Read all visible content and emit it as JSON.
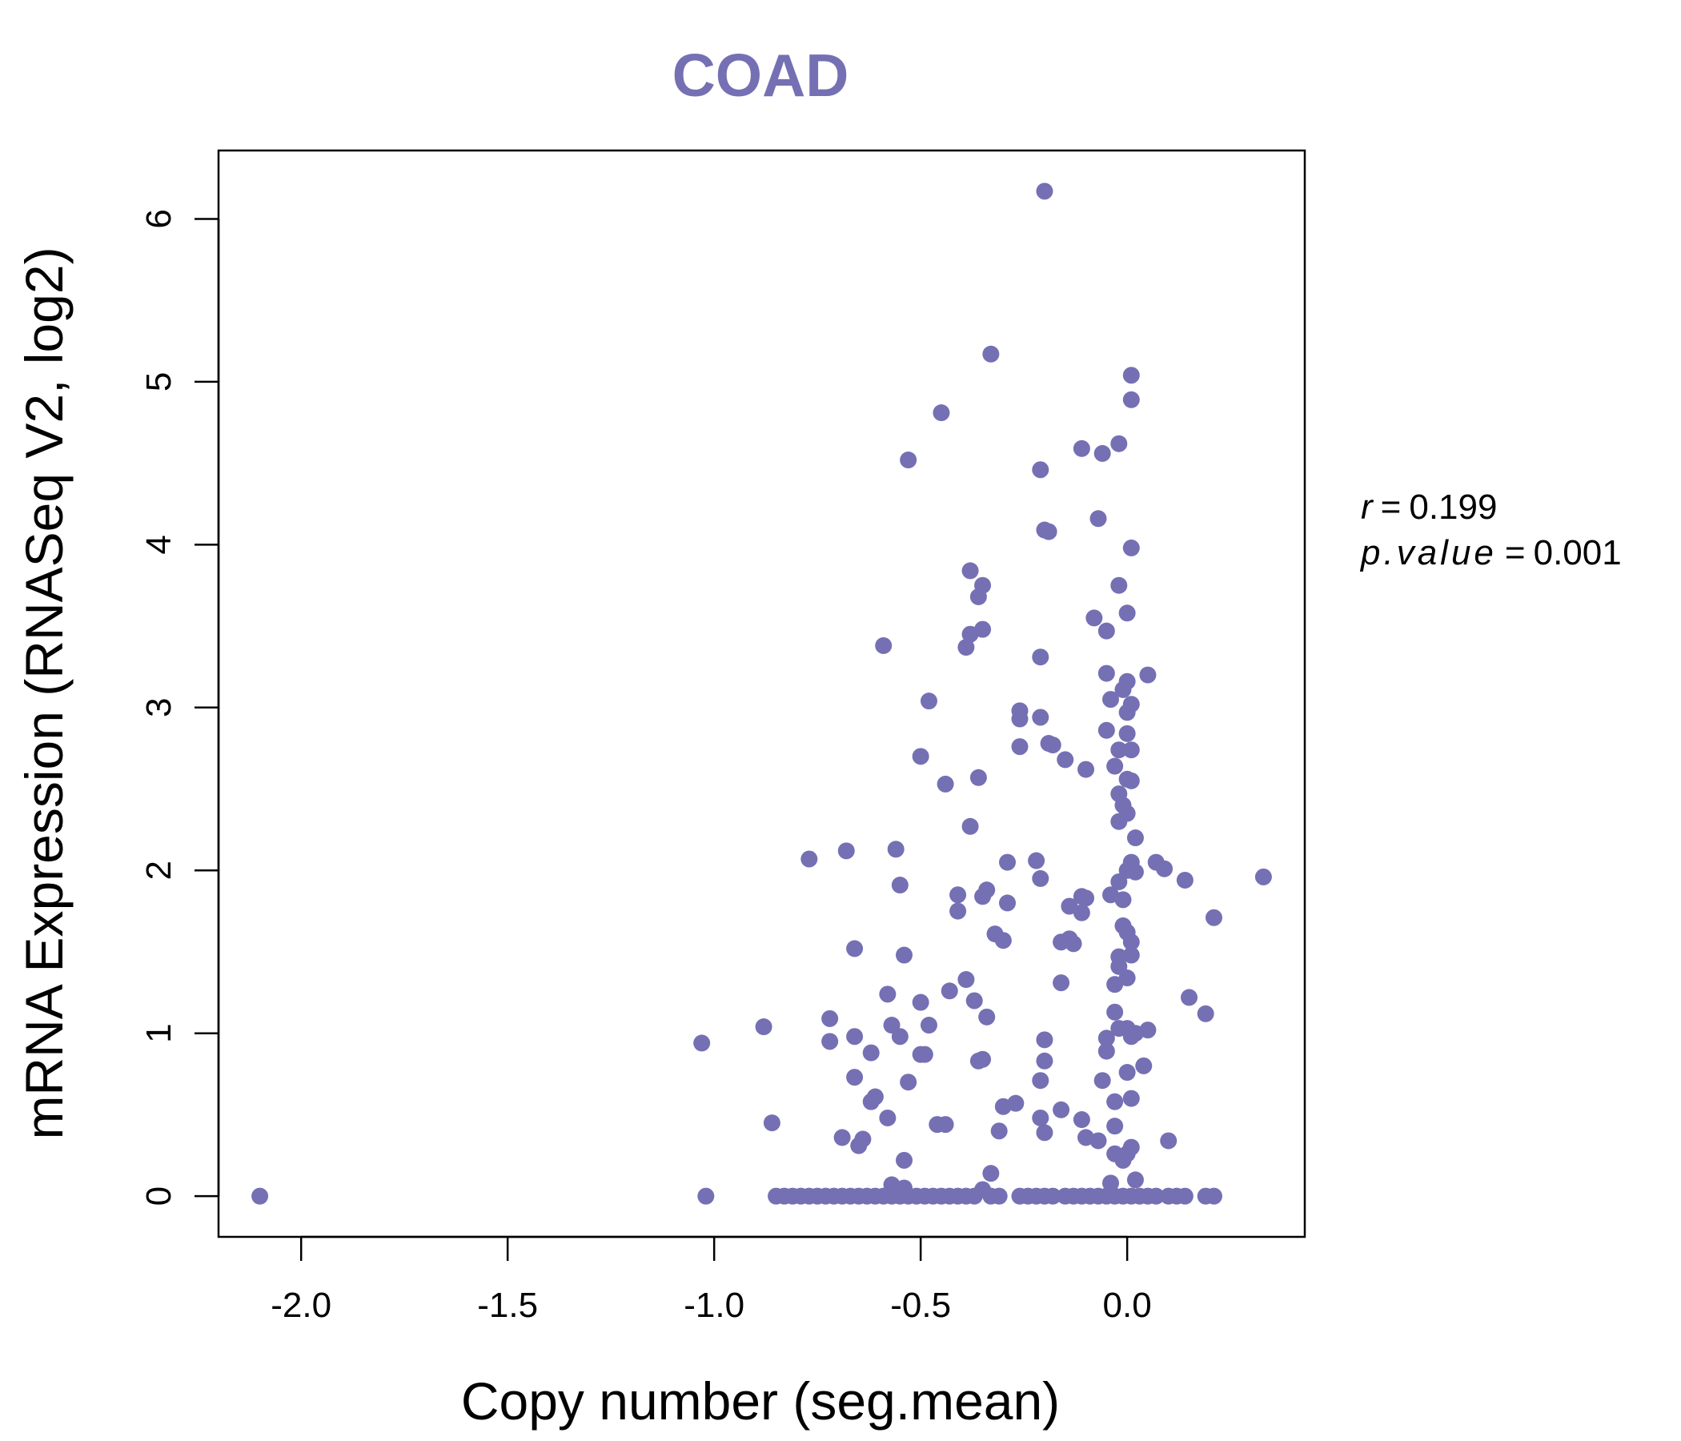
{
  "chart_data": {
    "type": "scatter",
    "title": "COAD",
    "xlabel": "Copy number (seg.mean)",
    "ylabel": "mRNA Expression (RNASeq V2, log2)",
    "xlim": [
      -2.2,
      0.43
    ],
    "ylim": [
      -0.25,
      6.42
    ],
    "xticks": [
      -2.0,
      -1.5,
      -1.0,
      -0.5,
      0.0
    ],
    "xtick_labels": [
      "-2.0",
      "-1.5",
      "-1.0",
      "-0.5",
      "0.0"
    ],
    "yticks": [
      0,
      1,
      2,
      3,
      4,
      5,
      6
    ],
    "ytick_labels": [
      "0",
      "1",
      "2",
      "3",
      "4",
      "5",
      "6"
    ],
    "point_color": "#7570b3",
    "annotation": {
      "r_label": "r",
      "r_value": "0.199",
      "p_label": "p.value",
      "p_value": "0.001",
      "equals": "="
    },
    "points": [
      [
        -2.1,
        0
      ],
      [
        -1.02,
        0
      ],
      [
        -1.03,
        0.94
      ],
      [
        -0.88,
        1.04
      ],
      [
        -0.86,
        0.45
      ],
      [
        -0.77,
        2.07
      ],
      [
        -0.68,
        2.12
      ],
      [
        -0.66,
        1.52
      ],
      [
        -0.72,
        1.09
      ],
      [
        -0.72,
        0.95
      ],
      [
        -0.66,
        0.98
      ],
      [
        -0.62,
        0.88
      ],
      [
        -0.66,
        0.73
      ],
      [
        -0.62,
        0.58
      ],
      [
        -0.61,
        0.61
      ],
      [
        -0.58,
        0.48
      ],
      [
        -0.69,
        0.36
      ],
      [
        -0.65,
        0.31
      ],
      [
        -0.64,
        0.35
      ],
      [
        -0.59,
        3.38
      ],
      [
        -0.56,
        2.13
      ],
      [
        -0.55,
        1.91
      ],
      [
        -0.54,
        1.48
      ],
      [
        -0.58,
        1.24
      ],
      [
        -0.57,
        1.05
      ],
      [
        -0.55,
        0.98
      ],
      [
        -0.53,
        0.7
      ],
      [
        -0.54,
        0.22
      ],
      [
        -0.57,
        0.07
      ],
      [
        -0.54,
        0.05
      ],
      [
        -0.53,
        4.52
      ],
      [
        -0.45,
        4.81
      ],
      [
        -0.48,
        3.04
      ],
      [
        -0.5,
        2.7
      ],
      [
        -0.44,
        2.53
      ],
      [
        -0.5,
        1.19
      ],
      [
        -0.48,
        1.05
      ],
      [
        -0.5,
        0.87
      ],
      [
        -0.49,
        0.87
      ],
      [
        -0.43,
        1.26
      ],
      [
        -0.46,
        0.44
      ],
      [
        -0.44,
        0.44
      ],
      [
        -0.38,
        3.84
      ],
      [
        -0.36,
        3.68
      ],
      [
        -0.35,
        3.75
      ],
      [
        -0.38,
        3.45
      ],
      [
        -0.35,
        3.48
      ],
      [
        -0.39,
        3.37
      ],
      [
        -0.36,
        2.57
      ],
      [
        -0.38,
        2.27
      ],
      [
        -0.41,
        1.85
      ],
      [
        -0.41,
        1.75
      ],
      [
        -0.34,
        1.88
      ],
      [
        -0.35,
        1.84
      ],
      [
        -0.39,
        1.33
      ],
      [
        -0.37,
        1.2
      ],
      [
        -0.34,
        1.1
      ],
      [
        -0.36,
        0.83
      ],
      [
        -0.35,
        0.84
      ],
      [
        -0.35,
        0.04
      ],
      [
        -0.33,
        0.14
      ],
      [
        -0.33,
        5.17
      ],
      [
        -0.32,
        1.61
      ],
      [
        -0.3,
        1.57
      ],
      [
        -0.29,
        2.05
      ],
      [
        -0.29,
        1.8
      ],
      [
        -0.26,
        2.98
      ],
      [
        -0.26,
        2.93
      ],
      [
        -0.26,
        2.76
      ],
      [
        -0.3,
        0.55
      ],
      [
        -0.27,
        0.57
      ],
      [
        -0.31,
        0.4
      ],
      [
        -0.2,
        6.17
      ],
      [
        -0.21,
        4.46
      ],
      [
        -0.2,
        4.09
      ],
      [
        -0.19,
        4.08
      ],
      [
        -0.21,
        3.31
      ],
      [
        -0.21,
        2.94
      ],
      [
        -0.19,
        2.78
      ],
      [
        -0.18,
        2.77
      ],
      [
        -0.15,
        2.68
      ],
      [
        -0.22,
        2.06
      ],
      [
        -0.21,
        1.95
      ],
      [
        -0.16,
        1.56
      ],
      [
        -0.14,
        1.58
      ],
      [
        -0.13,
        1.55
      ],
      [
        -0.16,
        1.31
      ],
      [
        -0.2,
        0.96
      ],
      [
        -0.2,
        0.83
      ],
      [
        -0.21,
        0.71
      ],
      [
        -0.21,
        0.48
      ],
      [
        -0.2,
        0.39
      ],
      [
        -0.16,
        0.53
      ],
      [
        -0.11,
        4.59
      ],
      [
        -0.06,
        4.56
      ],
      [
        -0.02,
        4.62
      ],
      [
        -0.07,
        4.16
      ],
      [
        -0.08,
        3.55
      ],
      [
        -0.05,
        3.47
      ],
      [
        -0.05,
        3.21
      ],
      [
        -0.04,
        3.05
      ],
      [
        -0.1,
        2.62
      ],
      [
        -0.05,
        2.86
      ],
      [
        -0.14,
        1.78
      ],
      [
        -0.11,
        1.84
      ],
      [
        -0.1,
        1.83
      ],
      [
        -0.11,
        1.74
      ],
      [
        -0.1,
        0.36
      ],
      [
        -0.11,
        0.47
      ],
      [
        -0.07,
        0.34
      ],
      [
        -0.05,
        0.97
      ],
      [
        -0.05,
        0.89
      ],
      [
        -0.06,
        0.71
      ],
      [
        -0.03,
        0.58
      ],
      [
        -0.03,
        0.43
      ],
      [
        -0.03,
        1.13
      ],
      [
        -0.02,
        3.75
      ],
      [
        0.0,
        3.58
      ],
      [
        0.01,
        3.98
      ],
      [
        -0.01,
        3.11
      ],
      [
        0.0,
        3.16
      ],
      [
        0.01,
        3.02
      ],
      [
        0.0,
        2.97
      ],
      [
        0.0,
        2.84
      ],
      [
        0.01,
        2.74
      ],
      [
        -0.02,
        2.74
      ],
      [
        -0.03,
        2.64
      ],
      [
        0.0,
        2.56
      ],
      [
        0.01,
        2.55
      ],
      [
        -0.02,
        2.47
      ],
      [
        -0.01,
        2.4
      ],
      [
        0.0,
        2.35
      ],
      [
        -0.02,
        2.3
      ],
      [
        0.02,
        2.2
      ],
      [
        0.01,
        2.05
      ],
      [
        0.0,
        2.0
      ],
      [
        0.02,
        1.99
      ],
      [
        -0.02,
        1.93
      ],
      [
        -0.04,
        1.85
      ],
      [
        -0.01,
        1.82
      ],
      [
        -0.01,
        1.66
      ],
      [
        0.0,
        1.62
      ],
      [
        0.01,
        1.56
      ],
      [
        0.01,
        1.48
      ],
      [
        -0.02,
        1.47
      ],
      [
        -0.02,
        1.41
      ],
      [
        0.0,
        1.34
      ],
      [
        -0.03,
        1.3
      ],
      [
        -0.02,
        1.03
      ],
      [
        0.0,
        1.03
      ],
      [
        0.01,
        0.98
      ],
      [
        0.02,
        1.0
      ],
      [
        0.05,
        1.02
      ],
      [
        0.0,
        0.76
      ],
      [
        0.04,
        0.8
      ],
      [
        0.01,
        0.6
      ],
      [
        0.01,
        0.3
      ],
      [
        0.0,
        0.26
      ],
      [
        -0.01,
        0.22
      ],
      [
        -0.03,
        0.26
      ],
      [
        0.02,
        0.1
      ],
      [
        -0.04,
        0.08
      ],
      [
        0.01,
        5.04
      ],
      [
        0.01,
        4.89
      ],
      [
        0.05,
        3.2
      ],
      [
        0.07,
        2.05
      ],
      [
        0.09,
        2.01
      ],
      [
        0.14,
        1.94
      ],
      [
        0.33,
        1.96
      ],
      [
        0.21,
        1.71
      ],
      [
        0.15,
        1.22
      ],
      [
        0.19,
        1.12
      ],
      [
        0.1,
        0.34
      ],
      [
        -0.85,
        0
      ],
      [
        -0.83,
        0
      ],
      [
        -0.81,
        0
      ],
      [
        -0.79,
        0
      ],
      [
        -0.77,
        0
      ],
      [
        -0.75,
        0
      ],
      [
        -0.73,
        0
      ],
      [
        -0.71,
        0
      ],
      [
        -0.69,
        0
      ],
      [
        -0.67,
        0
      ],
      [
        -0.65,
        0
      ],
      [
        -0.63,
        0
      ],
      [
        -0.61,
        0
      ],
      [
        -0.59,
        0
      ],
      [
        -0.57,
        0
      ],
      [
        -0.55,
        0
      ],
      [
        -0.53,
        0
      ],
      [
        -0.51,
        0
      ],
      [
        -0.49,
        0
      ],
      [
        -0.47,
        0
      ],
      [
        -0.45,
        0
      ],
      [
        -0.43,
        0
      ],
      [
        -0.41,
        0
      ],
      [
        -0.39,
        0
      ],
      [
        -0.37,
        0
      ],
      [
        -0.33,
        0
      ],
      [
        -0.31,
        0
      ],
      [
        -0.26,
        0
      ],
      [
        -0.24,
        0
      ],
      [
        -0.22,
        0
      ],
      [
        -0.2,
        0
      ],
      [
        -0.18,
        0
      ],
      [
        -0.15,
        0
      ],
      [
        -0.13,
        0
      ],
      [
        -0.11,
        0
      ],
      [
        -0.09,
        0
      ],
      [
        -0.07,
        0
      ],
      [
        -0.05,
        0
      ],
      [
        -0.03,
        0
      ],
      [
        -0.01,
        0
      ],
      [
        0.01,
        0
      ],
      [
        0.03,
        0
      ],
      [
        0.05,
        0
      ],
      [
        0.07,
        0
      ],
      [
        0.1,
        0
      ],
      [
        0.12,
        0
      ],
      [
        0.14,
        0
      ],
      [
        0.19,
        0
      ],
      [
        0.21,
        0
      ]
    ]
  }
}
